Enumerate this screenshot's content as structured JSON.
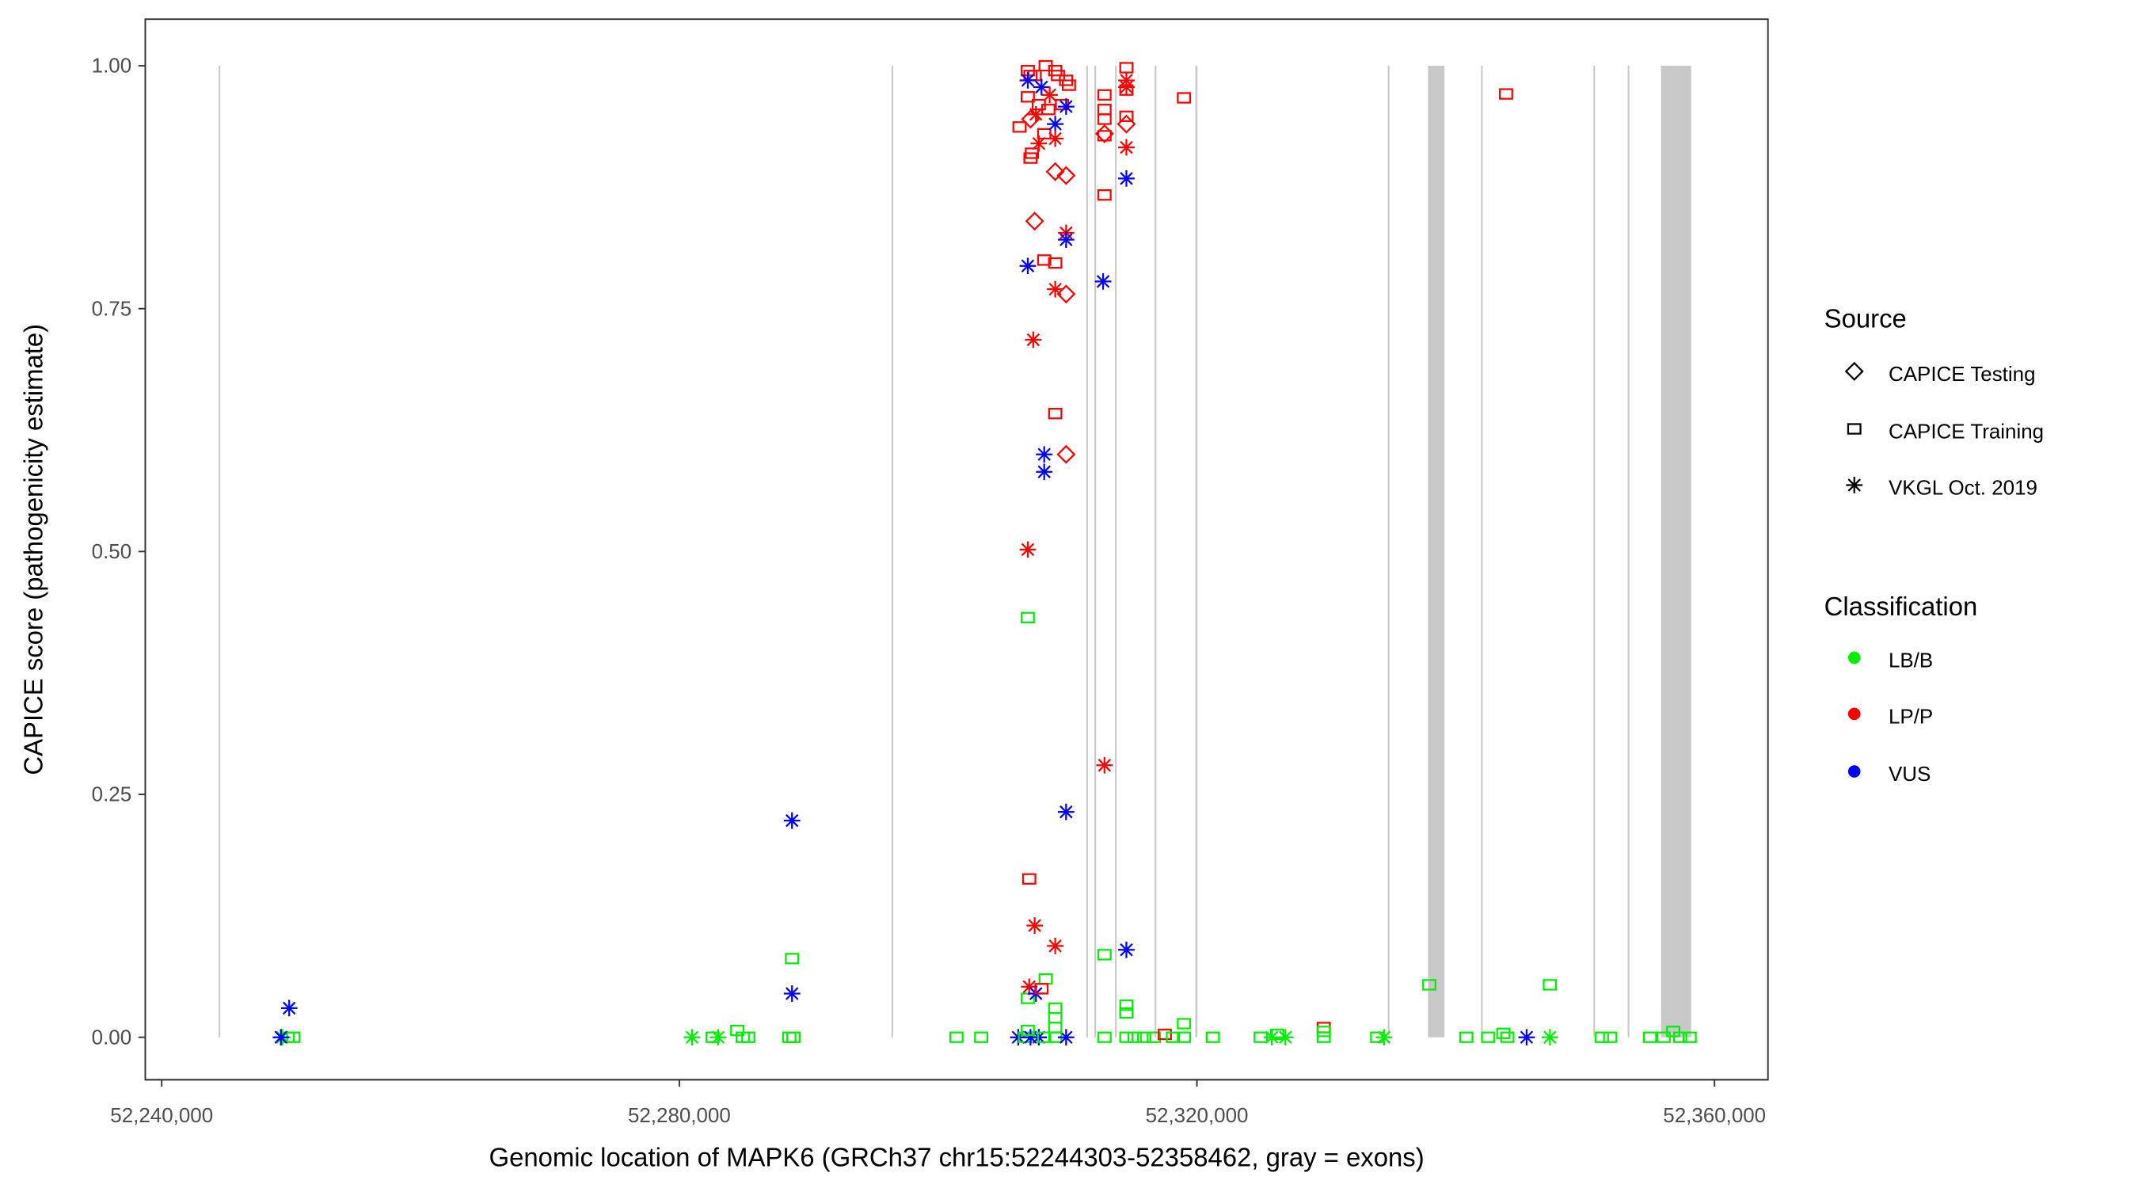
{
  "chart_data": {
    "type": "scatter",
    "xlabel": "Genomic location of MAPK6 (GRCh37 chr15:52244303-52358462, gray = exons)",
    "ylabel": "CAPICE score (pathogenicity estimate)",
    "xlim": [
      52239000,
      52364500
    ],
    "ylim": [
      -0.045,
      1.045
    ],
    "x_ticks": [
      52240000,
      52280000,
      52320000,
      52360000
    ],
    "x_tick_labels": [
      "52,240,000",
      "52,280,000",
      "52,320,000",
      "52,360,000"
    ],
    "y_ticks": [
      0,
      0.25,
      0.5,
      0.75,
      1.0
    ],
    "y_tick_labels": [
      "0.00",
      "0.25",
      "0.50",
      "0.75",
      "1.00"
    ],
    "grid": false,
    "exons": [
      [
        52244400,
        52244500
      ],
      [
        52296400,
        52296500
      ],
      [
        52311450,
        52311550
      ],
      [
        52312080,
        52312180
      ],
      [
        52313670,
        52313770
      ],
      [
        52316740,
        52316840
      ],
      [
        52319880,
        52320040
      ],
      [
        52334750,
        52334830
      ],
      [
        52337860,
        52339130
      ],
      [
        52341960,
        52342040
      ],
      [
        52350640,
        52350720
      ],
      [
        52353290,
        52353370
      ],
      [
        52355870,
        52358200
      ]
    ],
    "legend_placement": "right",
    "source_legend": {
      "title": "Source",
      "items": [
        "CAPICE Testing",
        "CAPICE Training",
        "VKGL Oct. 2019"
      ],
      "shapes": [
        "diamond",
        "square",
        "asterisk"
      ]
    },
    "class_legend": {
      "title": "Classification",
      "items": [
        "LB/B",
        "LP/P",
        "VUS"
      ],
      "colors": [
        "#00ee00",
        "#ff0000",
        "#0000ff"
      ]
    },
    "point_format": [
      "genomic_position",
      "capice_score",
      "source_index",
      "classification_index"
    ],
    "points": [
      [
        52249320,
        0,
        2,
        0
      ],
      [
        52249740,
        0,
        1,
        0
      ],
      [
        52250170,
        0,
        1,
        0
      ],
      [
        52249850,
        0.03,
        2,
        2
      ],
      [
        52249210,
        0,
        2,
        2
      ],
      [
        52280980,
        0,
        2,
        0
      ],
      [
        52282570,
        0,
        1,
        0
      ],
      [
        52283000,
        0,
        2,
        0
      ],
      [
        52284480,
        0.007,
        1,
        0
      ],
      [
        52284900,
        0,
        1,
        0
      ],
      [
        52285330,
        0,
        1,
        0
      ],
      [
        52288710,
        0.223,
        2,
        2
      ],
      [
        52288710,
        0.081,
        1,
        0
      ],
      [
        52288710,
        0.045,
        2,
        2
      ],
      [
        52288500,
        0,
        1,
        0
      ],
      [
        52288820,
        0,
        1,
        0
      ],
      [
        52301420,
        0,
        1,
        0
      ],
      [
        52303330,
        0,
        1,
        0
      ],
      [
        52306190,
        0,
        2,
        2
      ],
      [
        52306720,
        0,
        1,
        0
      ],
      [
        52307140,
        0,
        2,
        2
      ],
      [
        52307780,
        0,
        2,
        2
      ],
      [
        52308200,
        0,
        1,
        0
      ],
      [
        52309050,
        0,
        1,
        0
      ],
      [
        52309890,
        0,
        2,
        2
      ],
      [
        52306930,
        0.007,
        1,
        0
      ],
      [
        52309050,
        0.01,
        1,
        0
      ],
      [
        52309050,
        0.02,
        1,
        0
      ],
      [
        52309050,
        0.03,
        1,
        0
      ],
      [
        52308310,
        0.06,
        1,
        0
      ],
      [
        52306930,
        0.04,
        1,
        0
      ],
      [
        52307040,
        0.052,
        2,
        1
      ],
      [
        52307560,
        0.045,
        2,
        2
      ],
      [
        52307990,
        0.05,
        1,
        1
      ],
      [
        52307460,
        0.115,
        2,
        1
      ],
      [
        52309050,
        0.094,
        2,
        1
      ],
      [
        52307040,
        0.163,
        1,
        1
      ],
      [
        52309890,
        0.232,
        2,
        2
      ],
      [
        52306930,
        0.432,
        1,
        0
      ],
      [
        52306930,
        0.502,
        2,
        1
      ],
      [
        52308200,
        0.6,
        2,
        2
      ],
      [
        52308200,
        0.582,
        2,
        2
      ],
      [
        52309890,
        0.6,
        0,
        1
      ],
      [
        52309050,
        0.642,
        1,
        1
      ],
      [
        52307350,
        0.718,
        2,
        1
      ],
      [
        52309050,
        0.77,
        2,
        1
      ],
      [
        52309890,
        0.765,
        0,
        1
      ],
      [
        52306930,
        0.794,
        2,
        2
      ],
      [
        52308200,
        0.8,
        1,
        1
      ],
      [
        52309050,
        0.797,
        1,
        1
      ],
      [
        52309890,
        0.828,
        2,
        1
      ],
      [
        52309890,
        0.821,
        2,
        2
      ],
      [
        52307460,
        0.84,
        0,
        1
      ],
      [
        52309050,
        0.891,
        0,
        1
      ],
      [
        52309890,
        0.887,
        0,
        1
      ],
      [
        52306290,
        0.937,
        1,
        1
      ],
      [
        52307140,
        0.905,
        1,
        1
      ],
      [
        52307250,
        0.91,
        1,
        1
      ],
      [
        52307780,
        0.92,
        2,
        1
      ],
      [
        52308200,
        0.93,
        1,
        1
      ],
      [
        52309050,
        0.94,
        2,
        2
      ],
      [
        52309050,
        0.925,
        2,
        1
      ],
      [
        52306930,
        0.995,
        1,
        1
      ],
      [
        52307140,
        0.99,
        1,
        1
      ],
      [
        52307460,
        0.99,
        1,
        1
      ],
      [
        52308310,
        1.0,
        1,
        1
      ],
      [
        52309050,
        0.995,
        1,
        1
      ],
      [
        52309260,
        0.99,
        1,
        1
      ],
      [
        52309890,
        0.985,
        1,
        1
      ],
      [
        52310110,
        0.98,
        1,
        1
      ],
      [
        52306930,
        0.968,
        1,
        1
      ],
      [
        52307780,
        0.96,
        1,
        1
      ],
      [
        52308520,
        0.955,
        1,
        1
      ],
      [
        52309580,
        0.96,
        1,
        1
      ],
      [
        52309890,
        0.958,
        2,
        2
      ],
      [
        52306930,
        0.985,
        2,
        2
      ],
      [
        52307990,
        0.978,
        2,
        2
      ],
      [
        52307560,
        0.95,
        2,
        1
      ],
      [
        52308620,
        0.97,
        2,
        1
      ],
      [
        52307140,
        0.945,
        0,
        1
      ],
      [
        52312860,
        0.97,
        1,
        1
      ],
      [
        52312860,
        0.955,
        1,
        1
      ],
      [
        52312860,
        0.945,
        1,
        1
      ],
      [
        52312860,
        0.93,
        0,
        1
      ],
      [
        52312860,
        0.928,
        1,
        1
      ],
      [
        52312860,
        0.867,
        1,
        1
      ],
      [
        52312750,
        0.778,
        2,
        2
      ],
      [
        52312860,
        0.28,
        2,
        1
      ],
      [
        52312860,
        0.085,
        1,
        0
      ],
      [
        52312860,
        0,
        1,
        0
      ],
      [
        52314550,
        0.998,
        1,
        1
      ],
      [
        52314550,
        0.985,
        2,
        1
      ],
      [
        52314550,
        0.978,
        2,
        1
      ],
      [
        52314550,
        0.975,
        1,
        1
      ],
      [
        52314550,
        0.948,
        1,
        1
      ],
      [
        52314550,
        0.94,
        0,
        1
      ],
      [
        52314550,
        0.916,
        2,
        1
      ],
      [
        52314550,
        0.884,
        2,
        2
      ],
      [
        52314550,
        0.09,
        2,
        2
      ],
      [
        52314550,
        0.033,
        1,
        0
      ],
      [
        52314550,
        0.025,
        1,
        0
      ],
      [
        52314550,
        0,
        1,
        0
      ],
      [
        52315190,
        0,
        1,
        0
      ],
      [
        52315930,
        0,
        1,
        0
      ],
      [
        52316670,
        0,
        1,
        0
      ],
      [
        52317520,
        0.003,
        1,
        1
      ],
      [
        52318150,
        0,
        1,
        0
      ],
      [
        52319000,
        0.014,
        1,
        0
      ],
      [
        52319000,
        0,
        1,
        0
      ],
      [
        52319000,
        0.967,
        1,
        1
      ],
      [
        52321230,
        0,
        1,
        0
      ],
      [
        52324930,
        0,
        1,
        0
      ],
      [
        52325790,
        0,
        2,
        0
      ],
      [
        52326200,
        0.003,
        1,
        0
      ],
      [
        52326840,
        0,
        2,
        0
      ],
      [
        52329800,
        0.01,
        1,
        1
      ],
      [
        52329800,
        0.006,
        1,
        0
      ],
      [
        52329800,
        0,
        1,
        0
      ],
      [
        52333930,
        0,
        1,
        0
      ],
      [
        52334460,
        0,
        2,
        0
      ],
      [
        52337960,
        0.054,
        1,
        0
      ],
      [
        52340820,
        0,
        1,
        0
      ],
      [
        52342510,
        0,
        1,
        0
      ],
      [
        52343680,
        0.004,
        1,
        0
      ],
      [
        52343990,
        0,
        1,
        0
      ],
      [
        52343890,
        0.971,
        1,
        1
      ],
      [
        52345480,
        0,
        2,
        2
      ],
      [
        52347280,
        0.054,
        1,
        0
      ],
      [
        52347280,
        0,
        2,
        0
      ],
      [
        52351300,
        0,
        1,
        0
      ],
      [
        52351940,
        0,
        1,
        0
      ],
      [
        52355010,
        0,
        1,
        0
      ],
      [
        52356070,
        0,
        1,
        0
      ],
      [
        52356810,
        0.006,
        1,
        0
      ],
      [
        52357340,
        0,
        1,
        0
      ],
      [
        52358080,
        0,
        1,
        0
      ]
    ]
  }
}
